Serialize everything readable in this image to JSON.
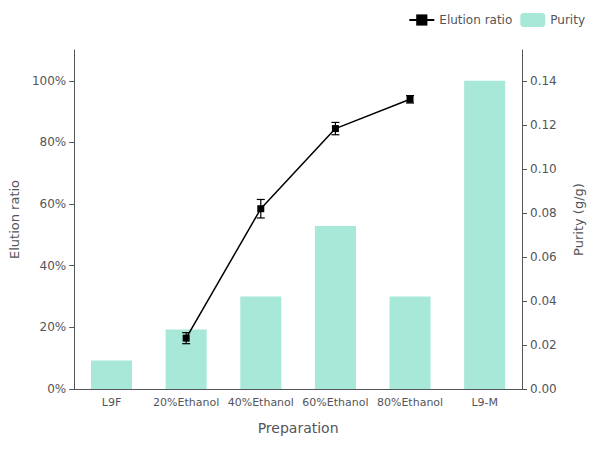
{
  "chart_data": {
    "type": "bar",
    "xlabel": "Preparation",
    "ylabel": "Elution ratio",
    "y2label": "Purity (g/g)",
    "categories": [
      "L9F",
      "20%Ethanol",
      "40%Ethanol",
      "60%Ethanol",
      "80%Ethanol",
      "L9-M"
    ],
    "series": [
      {
        "name": "Elution ratio",
        "type": "line",
        "color": "#000000",
        "marker": "square",
        "axis": "y",
        "values": [
          null,
          0.165,
          0.585,
          0.845,
          0.94,
          null
        ],
        "errors": [
          null,
          0.018,
          0.03,
          0.02,
          0.012,
          null
        ]
      },
      {
        "name": "Purity",
        "type": "bar",
        "color": "#a8e8d8",
        "axis": "y2",
        "values": [
          0.013,
          0.027,
          0.042,
          0.074,
          0.042,
          0.14
        ]
      }
    ],
    "ylim": [
      0.0,
      1.1
    ],
    "yticks": [
      {
        "value": 0.0,
        "label": "0%"
      },
      {
        "value": 0.2,
        "label": "20%"
      },
      {
        "value": 0.4,
        "label": "40%"
      },
      {
        "value": 0.6,
        "label": "60%"
      },
      {
        "value": 0.8,
        "label": "80%"
      },
      {
        "value": 1.0,
        "label": "100%"
      }
    ],
    "y2lim": [
      0.0,
      0.154
    ],
    "y2ticks": [
      {
        "value": 0.0,
        "label": "0.00"
      },
      0.02,
      0.04,
      0.06,
      0.08,
      {
        "value": 0.1,
        "label": "0.10"
      },
      0.12,
      0.14
    ],
    "grid": false,
    "legend": "upper right"
  }
}
